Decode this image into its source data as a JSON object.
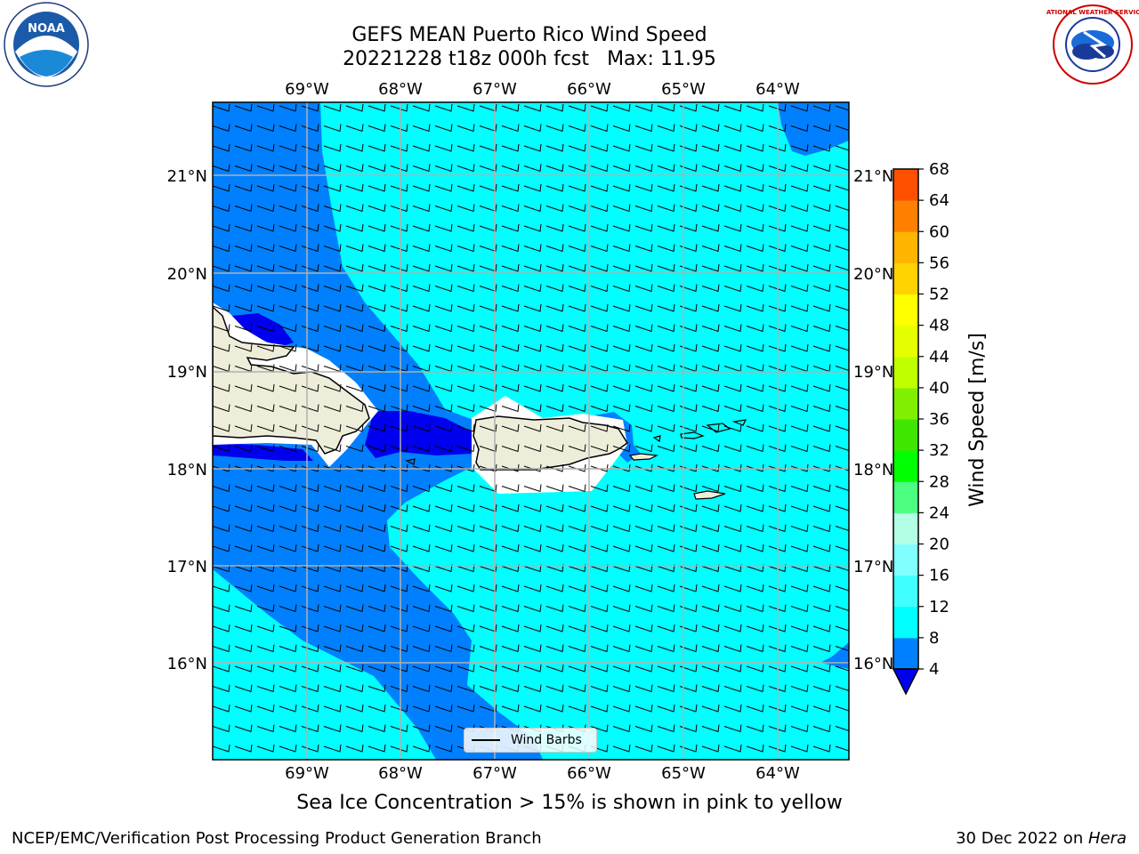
{
  "header": {
    "title_line1": "GEFS MEAN Puerto Rico Wind Speed",
    "title_line2_run": "20221228 t18z 000h fcst",
    "title_line2_max": "Max: 11.95"
  },
  "logos": {
    "noaa_text": "NOAA",
    "nws_text": "NATIONAL WEATHER SERVICE"
  },
  "map": {
    "lon_labels": [
      "69°W",
      "68°W",
      "67°W",
      "66°W",
      "65°W",
      "64°W"
    ],
    "lat_labels": [
      "21°N",
      "20°N",
      "19°N",
      "18°N",
      "17°N",
      "16°N"
    ],
    "colors": {
      "sea_high": "#00ffff",
      "sea_mid": "#0080ff",
      "sea_low": "#0000ee",
      "land": "#eeedda",
      "grid": "#b0b0b0"
    }
  },
  "legend": {
    "wind_barbs_label": "Wind Barbs"
  },
  "colorbar": {
    "label": "Wind Speed [m/s]",
    "ticks": [
      "4",
      "8",
      "12",
      "16",
      "20",
      "24",
      "28",
      "32",
      "36",
      "40",
      "44",
      "48",
      "52",
      "56",
      "60",
      "64",
      "68"
    ],
    "colors": [
      "#0080ff",
      "#00ffff",
      "#40ffff",
      "#80ffff",
      "#b3ffe6",
      "#4dff80",
      "#00ff00",
      "#40e600",
      "#80f000",
      "#c0ff00",
      "#e6ff00",
      "#ffff00",
      "#ffd200",
      "#ffb400",
      "#ff8000",
      "#ff5000",
      "#ff2800",
      "#ff0000"
    ],
    "extend_color": "#0000ee"
  },
  "subtitle": "Sea Ice Concentration > 15% is shown in pink to yellow",
  "footer": {
    "left": "NCEP/EMC/Verification Post Processing Product Generation Branch",
    "right_date": "30 Dec 2022 on ",
    "right_machine": "Hera"
  }
}
